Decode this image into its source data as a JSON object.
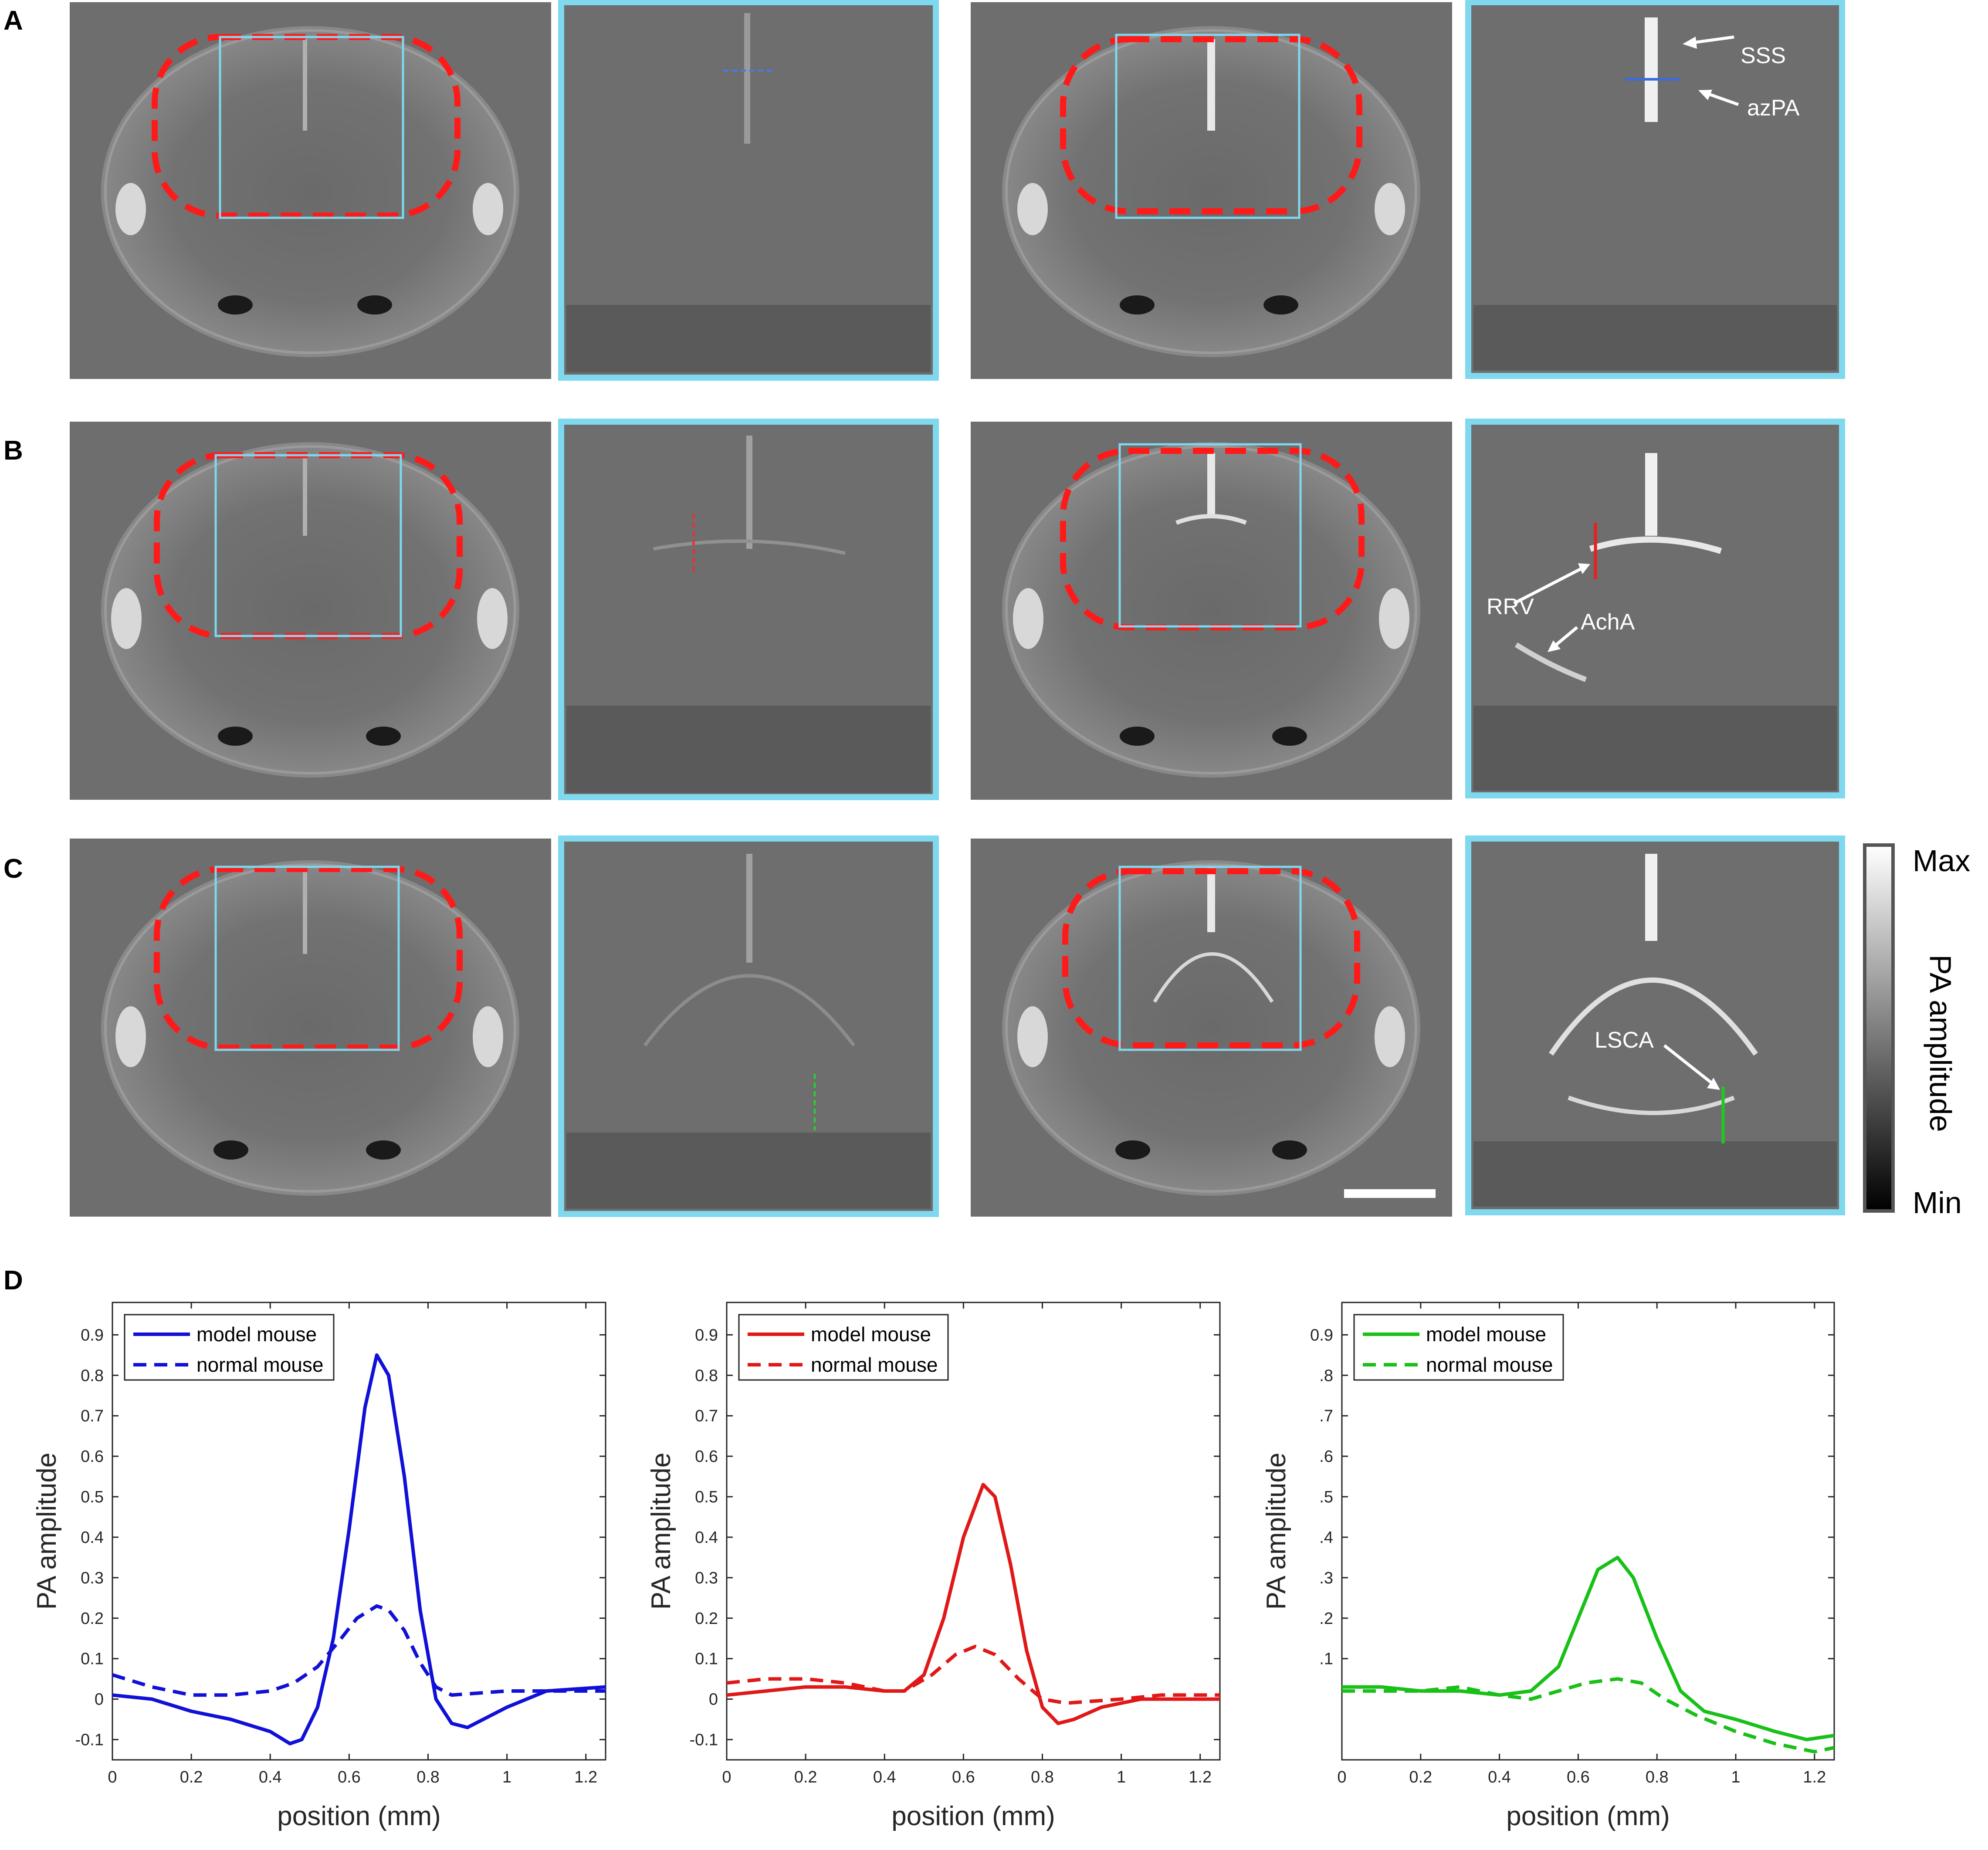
{
  "panel_labels": [
    "A",
    "B",
    "C",
    "D"
  ],
  "annotations": {
    "a": [
      "SSS",
      "azPA"
    ],
    "b": [
      "RRV",
      "AchA"
    ],
    "c": [
      "LSCA"
    ]
  },
  "colorbar": {
    "max": "Max",
    "label": "PA amplitude",
    "min": "Min"
  },
  "colors": {
    "roi_dashed": "#ff1a1a",
    "zoom_box": "#7fd8ee",
    "image_bg": "#6e6e6e",
    "blue": "#1010d8",
    "red": "#e01818",
    "green": "#18c018"
  },
  "chart_data": [
    {
      "type": "line",
      "xlabel": "position (mm)",
      "ylabel": "PA amplitude",
      "xlim": [
        0,
        1.25
      ],
      "ylim": [
        -0.15,
        0.98
      ],
      "xticks": [
        "0",
        "0.2",
        "0.4",
        "0.6",
        "0.8",
        "1",
        "1.2"
      ],
      "yticks": [
        "-0.1",
        "0",
        "0.1",
        "0.2",
        "0.3",
        "0.4",
        "0.5",
        "0.6",
        "0.7",
        "0.8",
        "0.9"
      ],
      "legend_position": "top-left",
      "color": "#1010d8",
      "series": [
        {
          "name": "model mouse",
          "style": "solid",
          "x": [
            0,
            0.1,
            0.2,
            0.3,
            0.4,
            0.45,
            0.48,
            0.52,
            0.56,
            0.6,
            0.64,
            0.67,
            0.7,
            0.74,
            0.78,
            0.82,
            0.86,
            0.9,
            1.0,
            1.1,
            1.25
          ],
          "y": [
            0.01,
            0.0,
            -0.03,
            -0.05,
            -0.08,
            -0.11,
            -0.1,
            -0.02,
            0.15,
            0.42,
            0.72,
            0.85,
            0.8,
            0.55,
            0.22,
            0.0,
            -0.06,
            -0.07,
            -0.02,
            0.02,
            0.03
          ]
        },
        {
          "name": "normal mouse",
          "style": "dashed",
          "x": [
            0,
            0.1,
            0.2,
            0.3,
            0.4,
            0.46,
            0.52,
            0.58,
            0.62,
            0.67,
            0.7,
            0.74,
            0.78,
            0.82,
            0.86,
            1.0,
            1.1,
            1.25
          ],
          "y": [
            0.06,
            0.03,
            0.01,
            0.01,
            0.02,
            0.04,
            0.08,
            0.15,
            0.2,
            0.23,
            0.22,
            0.17,
            0.09,
            0.03,
            0.01,
            0.02,
            0.02,
            0.02
          ]
        }
      ]
    },
    {
      "type": "line",
      "xlabel": "position (mm)",
      "ylabel": "PA amplitude",
      "xlim": [
        0,
        1.25
      ],
      "ylim": [
        -0.15,
        0.98
      ],
      "xticks": [
        "0",
        "0.2",
        "0.4",
        "0.6",
        "0.8",
        "1",
        "1.2"
      ],
      "yticks": [
        "-0.1",
        "0",
        "0.1",
        "0.2",
        "0.3",
        "0.4",
        "0.5",
        "0.6",
        "0.7",
        "0.8",
        "0.9"
      ],
      "legend_position": "top-left",
      "color": "#e01818",
      "series": [
        {
          "name": "model mouse",
          "style": "solid",
          "x": [
            0,
            0.1,
            0.2,
            0.3,
            0.4,
            0.45,
            0.5,
            0.55,
            0.6,
            0.65,
            0.68,
            0.72,
            0.76,
            0.8,
            0.84,
            0.88,
            0.95,
            1.05,
            1.25
          ],
          "y": [
            0.01,
            0.02,
            0.03,
            0.03,
            0.02,
            0.02,
            0.06,
            0.2,
            0.4,
            0.53,
            0.5,
            0.33,
            0.12,
            -0.02,
            -0.06,
            -0.05,
            -0.02,
            0.0,
            0.0
          ]
        },
        {
          "name": "normal mouse",
          "style": "dashed",
          "x": [
            0,
            0.1,
            0.2,
            0.3,
            0.4,
            0.45,
            0.52,
            0.58,
            0.63,
            0.68,
            0.74,
            0.8,
            0.86,
            1.0,
            1.1,
            1.25
          ],
          "y": [
            0.04,
            0.05,
            0.05,
            0.04,
            0.02,
            0.02,
            0.06,
            0.11,
            0.13,
            0.11,
            0.05,
            0.0,
            -0.01,
            0.0,
            0.01,
            0.01
          ]
        }
      ]
    },
    {
      "type": "line",
      "xlabel": "position (mm)",
      "ylabel": "PA amplitude",
      "xlim": [
        0,
        1.25
      ],
      "ylim": [
        -0.15,
        0.98
      ],
      "xticks": [
        "0",
        "0.2",
        "0.4",
        "0.6",
        "0.8",
        "1",
        "1.2"
      ],
      "yticks": [
        ".1",
        ".2",
        ".3",
        ".4",
        ".5",
        ".6",
        ".7",
        ".8",
        "0.9"
      ],
      "legend_position": "top-left",
      "color": "#18c018",
      "series": [
        {
          "name": "model mouse",
          "style": "solid",
          "x": [
            0,
            0.1,
            0.2,
            0.3,
            0.4,
            0.48,
            0.55,
            0.6,
            0.65,
            0.7,
            0.74,
            0.8,
            0.86,
            0.92,
            1.0,
            1.1,
            1.18,
            1.25
          ],
          "y": [
            0.03,
            0.03,
            0.02,
            0.02,
            0.01,
            0.02,
            0.08,
            0.2,
            0.32,
            0.35,
            0.3,
            0.15,
            0.02,
            -0.03,
            -0.05,
            -0.08,
            -0.1,
            -0.09
          ]
        },
        {
          "name": "normal mouse",
          "style": "dashed",
          "x": [
            0,
            0.1,
            0.2,
            0.3,
            0.4,
            0.48,
            0.55,
            0.62,
            0.7,
            0.76,
            0.82,
            0.9,
            1.0,
            1.1,
            1.2,
            1.25
          ],
          "y": [
            0.02,
            0.02,
            0.02,
            0.03,
            0.01,
            0.0,
            0.02,
            0.04,
            0.05,
            0.04,
            0.0,
            -0.04,
            -0.08,
            -0.11,
            -0.13,
            -0.12
          ]
        }
      ]
    }
  ]
}
